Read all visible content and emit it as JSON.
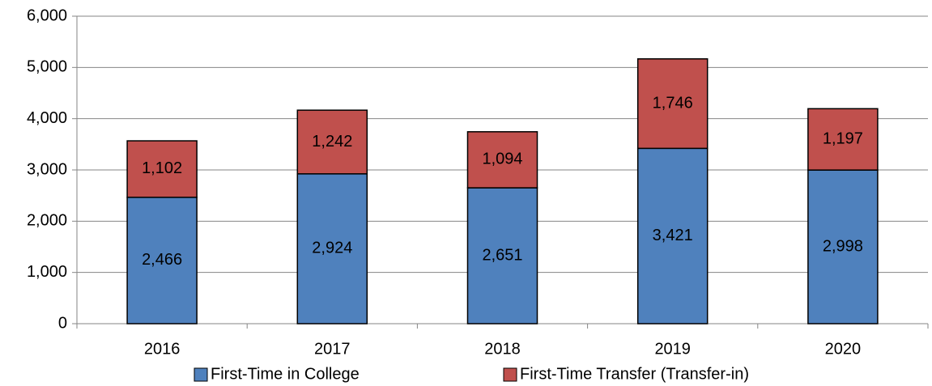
{
  "chart_data": {
    "type": "stacked_bar",
    "categories": [
      "2016",
      "2017",
      "2018",
      "2019",
      "2020"
    ],
    "series": [
      {
        "name": "First-Time in College",
        "color": "#4f81bd",
        "values": [
          2466,
          2924,
          2651,
          3421,
          2998
        ],
        "value_labels": [
          "2,466",
          "2,924",
          "2,651",
          "3,421",
          "2,998"
        ]
      },
      {
        "name": "First-Time Transfer (Transfer-in)",
        "color": "#c0504d",
        "values": [
          1102,
          1242,
          1094,
          1746,
          1197
        ],
        "value_labels": [
          "1,102",
          "1,242",
          "1,094",
          "1,746",
          "1,197"
        ]
      }
    ],
    "ylim": [
      0,
      6000
    ],
    "yticks": [
      {
        "value": 0,
        "label": "0"
      },
      {
        "value": 1000,
        "label": "1,000"
      },
      {
        "value": 2000,
        "label": "2,000"
      },
      {
        "value": 3000,
        "label": "3,000"
      },
      {
        "value": 4000,
        "label": "4,000"
      },
      {
        "value": 5000,
        "label": "5,000"
      },
      {
        "value": 6000,
        "label": "6,000"
      }
    ],
    "grid": true,
    "legend": "bottom"
  }
}
